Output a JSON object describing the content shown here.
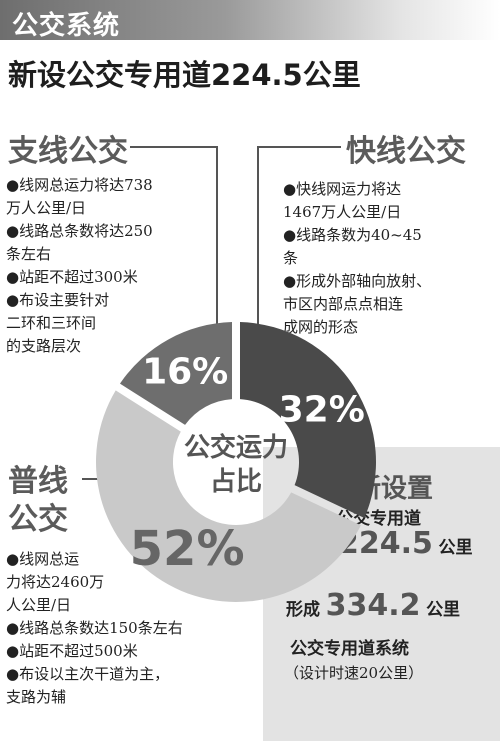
{
  "header": {
    "label": "公交系统"
  },
  "headline": "新设公交专用道224.5公里",
  "chart_data": {
    "type": "pie",
    "title": "公交运力占比",
    "center_label_lines": [
      "公交运力",
      "占比"
    ],
    "slices": [
      {
        "name": "快线公交",
        "value": 32,
        "label": "32%",
        "color": "#4a4a4a"
      },
      {
        "name": "普线公交",
        "value": 52,
        "label": "52%",
        "color": "#c9c9c9"
      },
      {
        "name": "支线公交",
        "value": 16,
        "label": "16%",
        "color": "#6e6e6e"
      }
    ],
    "start_angle_deg": 0,
    "inner_radius_ratio": 0.45
  },
  "branch": {
    "title": "支线公交",
    "bullets": [
      "●线网总运力将达738",
      "万人公里/日",
      "●线路总条数将达250",
      "条左右",
      "●站距不超过300米",
      "●布设主要针对",
      "二环和三环间",
      "的支路层次"
    ]
  },
  "express": {
    "title": "快线公交",
    "bullets": [
      "●快线网运力将达",
      "1467万人公里/日",
      "●线路条数为40~45",
      "条",
      "●形成外部轴向放射、",
      "市区内部点点相连",
      "成网的形态"
    ]
  },
  "regular": {
    "title_line1": "普线",
    "title_line2": "公交",
    "bullets": [
      "●线网总运",
      "力将达2460万",
      "人公里/日",
      "●线路总条数达150条左右",
      "●站距不超过500米",
      "●布设以主次干道为主，",
      "支路为辅"
    ]
  },
  "infobox": {
    "line1": "新设置",
    "line2": "公交专用道",
    "number1": "224.5",
    "unit1": "公里",
    "prefix2": "形成",
    "number2": "334.2",
    "unit2": "公里",
    "line3": "公交专用道系统",
    "line4": "（设计时速20公里）"
  }
}
